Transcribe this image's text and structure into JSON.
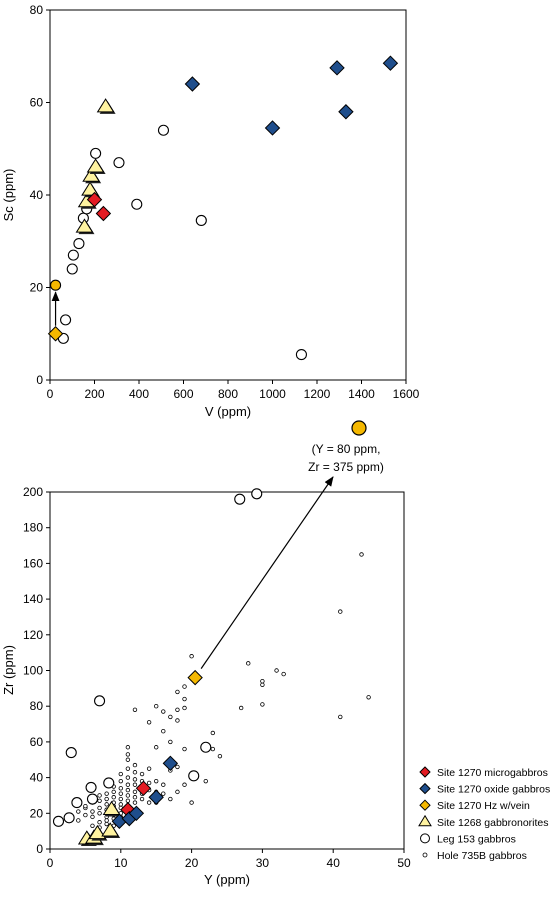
{
  "chart_data": [
    {
      "type": "scatter",
      "title": "",
      "xlabel": "V (ppm)",
      "ylabel": "Sc (ppm)",
      "xlim": [
        0,
        1600
      ],
      "ylim": [
        0,
        80
      ],
      "xticks": [
        "0",
        "200",
        "400",
        "600",
        "800",
        "1000",
        "1200",
        "1400",
        "1600"
      ],
      "yticks": [
        "0",
        "20",
        "40",
        "60",
        "80"
      ],
      "grid": false,
      "series": [
        {
          "name": "Site 1270 microgabbros",
          "marker": "diamond",
          "color": "#e31b23",
          "points": [
            [
              200,
              39
            ],
            [
              240,
              36
            ]
          ]
        },
        {
          "name": "Site 1270 oxide gabbros",
          "marker": "diamond",
          "color": "#1f4e8c",
          "points": [
            [
              640,
              64
            ],
            [
              1000,
              54.5
            ],
            [
              1290,
              67.5
            ],
            [
              1330,
              58
            ],
            [
              1530,
              68.5
            ]
          ]
        },
        {
          "name": "Site 1270 Hz w/vein",
          "marker": "diamond",
          "color": "#f5b800",
          "points": [
            [
              25,
              10
            ]
          ]
        },
        {
          "name": "Site 1268 gabbronorites",
          "marker": "triangle",
          "color": "#fff3a0",
          "points": [
            [
              155,
              33
            ],
            [
              165,
              38.5
            ],
            [
              180,
              41
            ],
            [
              185,
              44
            ],
            [
              205,
              46
            ],
            [
              250,
              59
            ]
          ]
        },
        {
          "name": "Leg 153 gabbros",
          "marker": "circle-large",
          "color": "#ffffff",
          "points": [
            [
              60,
              9
            ],
            [
              70,
              13
            ],
            [
              100,
              24
            ],
            [
              105,
              27
            ],
            [
              130,
              29.5
            ],
            [
              150,
              35
            ],
            [
              165,
              37
            ],
            [
              205,
              49
            ],
            [
              310,
              47
            ],
            [
              390,
              38
            ],
            [
              510,
              54
            ],
            [
              680,
              34.5
            ],
            [
              1130,
              5.5
            ]
          ]
        },
        {
          "name": "",
          "marker": "circle-large",
          "color": "#f5b800",
          "points": [
            [
              25,
              20.5
            ]
          ]
        }
      ],
      "annotations": [
        {
          "type": "arrow",
          "from": [
            25,
            10
          ],
          "to": [
            25,
            20.5
          ]
        }
      ]
    },
    {
      "type": "scatter",
      "title": "",
      "xlabel": "Y (ppm)",
      "ylabel": "Zr (ppm)",
      "xlim": [
        0,
        50
      ],
      "ylim": [
        0,
        200
      ],
      "xticks": [
        "0",
        "10",
        "20",
        "30",
        "40",
        "50"
      ],
      "yticks": [
        "0",
        "20",
        "40",
        "60",
        "80",
        "100",
        "120",
        "140",
        "160",
        "180",
        "200"
      ],
      "grid": false,
      "legend_position": "right",
      "series": [
        {
          "name": "Site 1270 microgabbros",
          "marker": "diamond",
          "color": "#e31b23",
          "points": [
            [
              11,
              22
            ],
            [
              13.2,
              34
            ]
          ]
        },
        {
          "name": "Site 1270 oxide gabbros",
          "marker": "diamond",
          "color": "#1f4e8c",
          "points": [
            [
              9.8,
              15.5
            ],
            [
              11.2,
              17
            ],
            [
              12.2,
              20
            ],
            [
              15,
              29
            ],
            [
              17,
              48
            ]
          ]
        },
        {
          "name": "Site 1270 Hz w/vein",
          "marker": "diamond",
          "color": "#f5b800",
          "points": [
            [
              20.5,
              96
            ]
          ]
        },
        {
          "name": "Site 1268 gabbronorites",
          "marker": "triangle",
          "color": "#fff3a0",
          "points": [
            [
              5.2,
              5.5
            ],
            [
              6.2,
              6
            ],
            [
              6.7,
              8.5
            ],
            [
              8.5,
              10
            ],
            [
              8.7,
              22
            ]
          ]
        },
        {
          "name": "Leg 153 gabbros",
          "marker": "circle-large",
          "color": "#ffffff",
          "points": [
            [
              1.2,
              15.5
            ],
            [
              2.7,
              17.5
            ],
            [
              3,
              54
            ],
            [
              3.8,
              26
            ],
            [
              5.8,
              34.5
            ],
            [
              6,
              28
            ],
            [
              7,
              83
            ],
            [
              8.3,
              37
            ],
            [
              20.3,
              41
            ],
            [
              22,
              57
            ],
            [
              26.8,
              196
            ],
            [
              29.2,
              199
            ]
          ]
        },
        {
          "name": "Hole 735B gabbros",
          "marker": "circle-small",
          "color": "#ffffff",
          "points": [
            [
              4,
              16
            ],
            [
              4,
              21
            ],
            [
              5,
              19
            ],
            [
              5,
              23
            ],
            [
              5,
              24
            ],
            [
              6,
              13
            ],
            [
              6,
              18
            ],
            [
              6,
              21
            ],
            [
              6,
              26
            ],
            [
              7,
              12
            ],
            [
              7,
              15
            ],
            [
              7,
              20
            ],
            [
              7,
              23
            ],
            [
              7,
              27
            ],
            [
              7,
              30
            ],
            [
              8,
              14
            ],
            [
              8,
              16
            ],
            [
              8,
              18
            ],
            [
              8,
              22
            ],
            [
              8,
              25
            ],
            [
              8,
              28
            ],
            [
              8,
              31
            ],
            [
              9,
              13
            ],
            [
              9,
              17
            ],
            [
              9,
              19
            ],
            [
              9,
              21
            ],
            [
              9,
              24
            ],
            [
              9,
              26
            ],
            [
              9,
              29
            ],
            [
              9,
              32
            ],
            [
              9,
              35
            ],
            [
              10,
              18
            ],
            [
              10,
              20
            ],
            [
              10,
              23
            ],
            [
              10,
              25
            ],
            [
              10,
              28
            ],
            [
              10,
              31
            ],
            [
              10,
              34
            ],
            [
              10,
              38
            ],
            [
              10,
              42
            ],
            [
              11,
              24
            ],
            [
              11,
              27
            ],
            [
              11,
              30
            ],
            [
              11,
              33
            ],
            [
              11,
              36
            ],
            [
              11,
              40
            ],
            [
              11,
              45
            ],
            [
              11,
              50
            ],
            [
              11,
              53
            ],
            [
              11,
              57
            ],
            [
              12,
              26
            ],
            [
              12,
              29
            ],
            [
              12,
              32
            ],
            [
              12,
              36
            ],
            [
              12,
              39
            ],
            [
              12,
              43
            ],
            [
              12,
              47
            ],
            [
              12,
              78
            ],
            [
              13,
              28
            ],
            [
              13,
              31
            ],
            [
              13,
              38
            ],
            [
              13,
              42
            ],
            [
              14,
              26
            ],
            [
              14,
              33
            ],
            [
              14,
              37
            ],
            [
              14,
              45
            ],
            [
              14,
              71
            ],
            [
              15,
              26
            ],
            [
              15,
              32
            ],
            [
              15,
              38
            ],
            [
              15,
              57
            ],
            [
              15,
              80
            ],
            [
              16,
              31
            ],
            [
              16,
              36
            ],
            [
              16,
              66
            ],
            [
              16,
              77
            ],
            [
              17,
              28
            ],
            [
              17,
              44
            ],
            [
              17,
              60
            ],
            [
              17,
              74
            ],
            [
              18,
              32
            ],
            [
              18,
              46
            ],
            [
              18,
              72
            ],
            [
              18,
              78
            ],
            [
              18,
              88
            ],
            [
              19,
              36
            ],
            [
              19,
              56
            ],
            [
              19,
              79
            ],
            [
              19,
              84
            ],
            [
              19,
              91
            ],
            [
              20,
              26
            ],
            [
              20,
              108
            ],
            [
              22,
              38
            ],
            [
              23,
              56
            ],
            [
              23,
              65
            ],
            [
              24,
              52
            ],
            [
              27,
              79
            ],
            [
              28,
              104
            ],
            [
              30,
              81
            ],
            [
              30,
              92
            ],
            [
              30,
              94
            ],
            [
              32,
              100
            ],
            [
              33,
              98
            ],
            [
              41,
              74
            ],
            [
              41,
              133
            ],
            [
              44,
              165
            ],
            [
              45,
              85
            ]
          ]
        }
      ],
      "annotations": [
        {
          "type": "arrow",
          "from": [
            20.5,
            96
          ],
          "to": "off-chart point"
        },
        {
          "type": "point",
          "label_lines": [
            "(Y = 80 ppm,",
            "Zr = 375 ppm)"
          ],
          "marker": "circle-large",
          "color": "#f5b800"
        }
      ]
    }
  ],
  "legend": [
    {
      "label": "Site 1270 microgabbros",
      "marker": "diamond",
      "color": "#e31b23"
    },
    {
      "label": "Site 1270 oxide gabbros",
      "marker": "diamond",
      "color": "#1f4e8c"
    },
    {
      "label": "Site 1270 Hz w/vein",
      "marker": "diamond",
      "color": "#f5b800"
    },
    {
      "label": "Site 1268 gabbronorites",
      "marker": "triangle",
      "color": "#fff3a0"
    },
    {
      "label": "Leg 153 gabbros",
      "marker": "circle-large",
      "color": "#ffffff"
    },
    {
      "label": "Hole 735B gabbros",
      "marker": "circle-small",
      "color": "#ffffff"
    }
  ]
}
